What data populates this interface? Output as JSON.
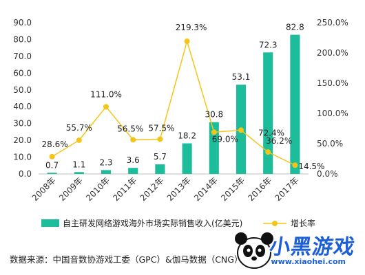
{
  "chart_data": {
    "type": "bar+line",
    "categories": [
      "2008年",
      "2009年",
      "2010年",
      "2011年",
      "2012年",
      "2013年",
      "2014年",
      "2015年",
      "2016年",
      "2017年"
    ],
    "series": [
      {
        "name": "自主研发网络游戏海外市场实际销售收入(亿美元)",
        "type": "bar",
        "axis": "left",
        "color": "#1dbc9b",
        "values": [
          0.7,
          1.1,
          2.3,
          3.6,
          5.7,
          18.2,
          30.8,
          53.1,
          72.3,
          82.8
        ],
        "labels": [
          "0.7",
          "1.1",
          "2.3",
          "3.6",
          "5.7",
          "18.2",
          "30.8",
          "53.1",
          "72.3",
          "82.8"
        ]
      },
      {
        "name": "增长率",
        "type": "line",
        "axis": "right",
        "color": "#f5c41a",
        "values": [
          28.6,
          55.7,
          111.0,
          56.5,
          57.5,
          219.3,
          69.0,
          72.4,
          36.2,
          14.5
        ],
        "labels": [
          "28.6%",
          "55.7%",
          "111.0%",
          "56.5%",
          "57.5%",
          "219.3%",
          "69.0%",
          "72.4%",
          "36.2%",
          "14.5%"
        ]
      }
    ],
    "left_axis": {
      "min": 0,
      "max": 90,
      "ticks": [
        "0.0",
        "10.0",
        "20.0",
        "30.0",
        "40.0",
        "50.0",
        "60.0",
        "70.0",
        "80.0",
        "90.0"
      ]
    },
    "right_axis": {
      "min": 0,
      "max": 250,
      "ticks": [
        "0.0%",
        "50.0%",
        "100.0%",
        "150.0%",
        "200.0%",
        "250.0%"
      ]
    },
    "grid": false,
    "legend_position": "bottom"
  },
  "source": "数据来源：中国音数协游戏工委（GPC）&伽马数据（CNG）",
  "watermark": {
    "logo": "小黑游戏",
    "url": "www.xiaohei.com"
  }
}
